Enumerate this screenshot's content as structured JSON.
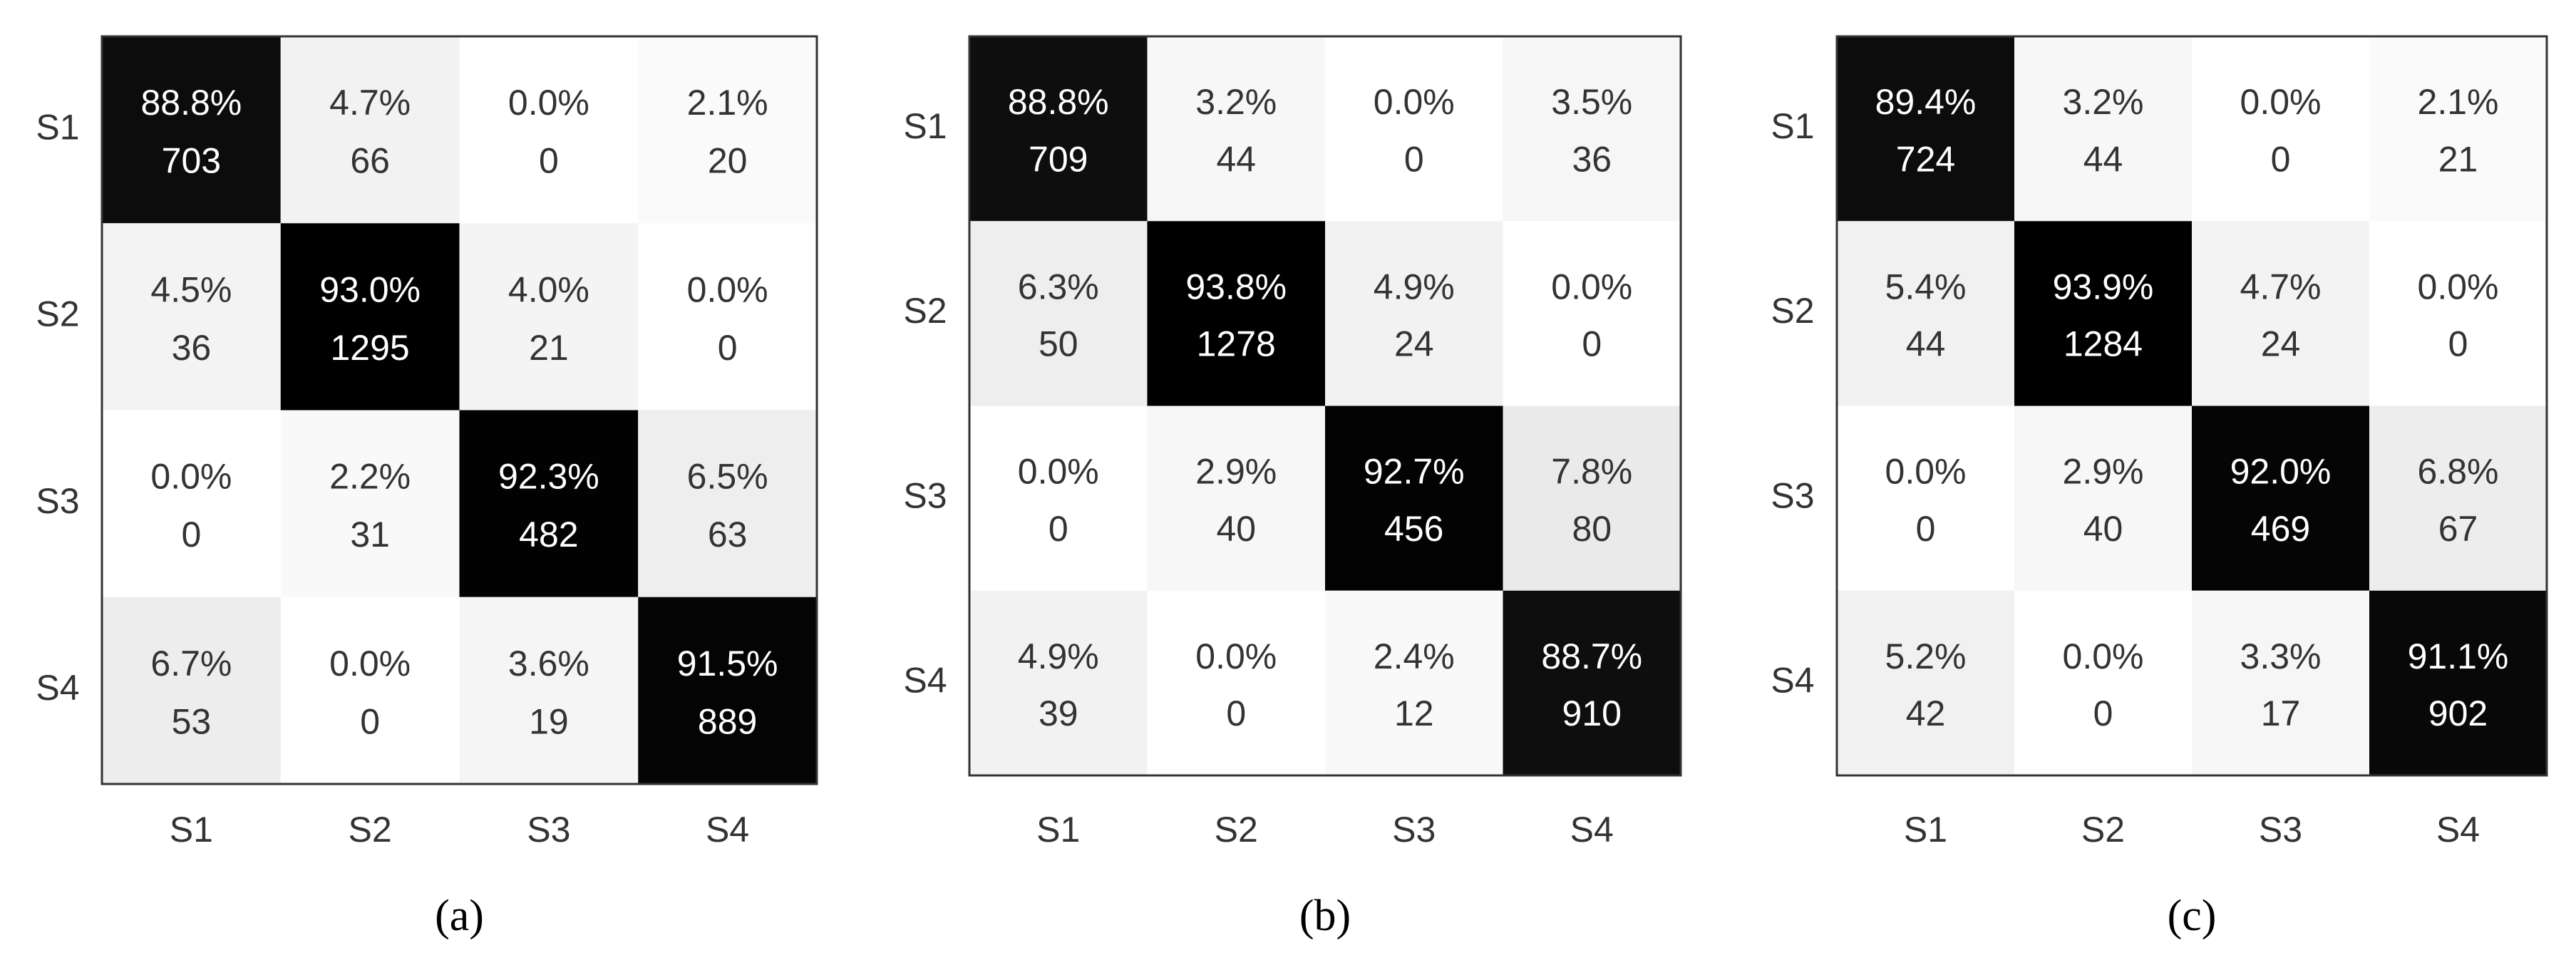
{
  "chart_data": [
    {
      "type": "heatmap",
      "caption": "(a)",
      "x_categories": [
        "S1",
        "S2",
        "S3",
        "S4"
      ],
      "y_categories": [
        "S1",
        "S2",
        "S3",
        "S4"
      ],
      "values": [
        [
          88.8,
          4.7,
          0.0,
          2.1
        ],
        [
          4.5,
          93.0,
          4.0,
          0.0
        ],
        [
          0.0,
          2.2,
          92.3,
          6.5
        ],
        [
          6.7,
          0.0,
          3.6,
          91.5
        ]
      ],
      "value_labels": [
        [
          "88.8%",
          "4.7%",
          "0.0%",
          "2.1%"
        ],
        [
          "4.5%",
          "93.0%",
          "4.0%",
          "0.0%"
        ],
        [
          "0.0%",
          "2.2%",
          "92.3%",
          "6.5%"
        ],
        [
          "6.7%",
          "0.0%",
          "3.6%",
          "91.5%"
        ]
      ],
      "counts": [
        [
          703,
          66,
          0,
          20
        ],
        [
          36,
          1295,
          21,
          0
        ],
        [
          0,
          31,
          482,
          63
        ],
        [
          53,
          0,
          19,
          889
        ]
      ]
    },
    {
      "type": "heatmap",
      "caption": "(b)",
      "x_categories": [
        "S1",
        "S2",
        "S3",
        "S4"
      ],
      "y_categories": [
        "S1",
        "S2",
        "S3",
        "S4"
      ],
      "values": [
        [
          88.8,
          3.2,
          0.0,
          3.5
        ],
        [
          6.3,
          93.8,
          4.9,
          0.0
        ],
        [
          0.0,
          2.9,
          92.7,
          7.8
        ],
        [
          4.9,
          0.0,
          2.4,
          88.7
        ]
      ],
      "value_labels": [
        [
          "88.8%",
          "3.2%",
          "0.0%",
          "3.5%"
        ],
        [
          "6.3%",
          "93.8%",
          "4.9%",
          "0.0%"
        ],
        [
          "0.0%",
          "2.9%",
          "92.7%",
          "7.8%"
        ],
        [
          "4.9%",
          "0.0%",
          "2.4%",
          "88.7%"
        ]
      ],
      "counts": [
        [
          709,
          44,
          0,
          36
        ],
        [
          50,
          1278,
          24,
          0
        ],
        [
          0,
          40,
          456,
          80
        ],
        [
          39,
          0,
          12,
          910
        ]
      ]
    },
    {
      "type": "heatmap",
      "caption": "(c)",
      "x_categories": [
        "S1",
        "S2",
        "S3",
        "S4"
      ],
      "y_categories": [
        "S1",
        "S2",
        "S3",
        "S4"
      ],
      "values": [
        [
          89.4,
          3.2,
          0.0,
          2.1
        ],
        [
          5.4,
          93.9,
          4.7,
          0.0
        ],
        [
          0.0,
          2.9,
          92.0,
          6.8
        ],
        [
          5.2,
          0.0,
          3.3,
          91.1
        ]
      ],
      "value_labels": [
        [
          "89.4%",
          "3.2%",
          "0.0%",
          "2.1%"
        ],
        [
          "5.4%",
          "93.9%",
          "4.7%",
          "0.0%"
        ],
        [
          "0.0%",
          "2.9%",
          "92.0%",
          "6.8%"
        ],
        [
          "5.2%",
          "0.0%",
          "3.3%",
          "91.1%"
        ]
      ],
      "counts": [
        [
          724,
          44,
          0,
          21
        ],
        [
          44,
          1284,
          24,
          0
        ],
        [
          0,
          40,
          469,
          67
        ],
        [
          42,
          0,
          17,
          902
        ]
      ]
    }
  ]
}
